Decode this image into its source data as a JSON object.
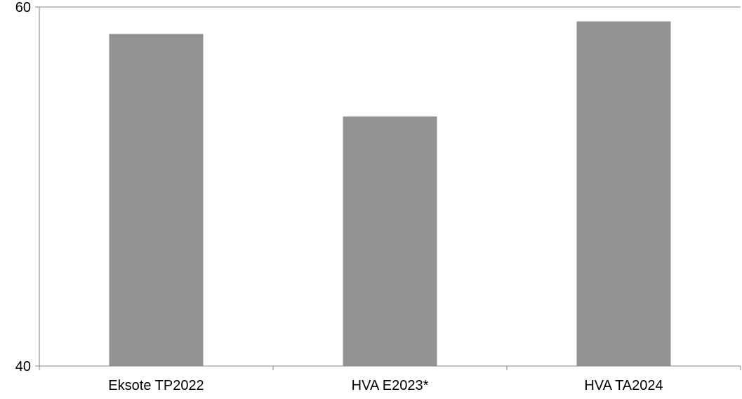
{
  "chart_data": {
    "type": "bar",
    "categories": [
      "Eksote TP2022",
      "HVA E2023*",
      "HVA TA2024"
    ],
    "values": [
      58.5,
      53.9,
      59.2
    ],
    "ylim": [
      40,
      60
    ],
    "yticks": [
      "40",
      "60"
    ],
    "grid": false,
    "legend": "none",
    "bar_color": "#939393",
    "axis_color": "#868686",
    "title": "",
    "xlabel": "",
    "ylabel": ""
  }
}
